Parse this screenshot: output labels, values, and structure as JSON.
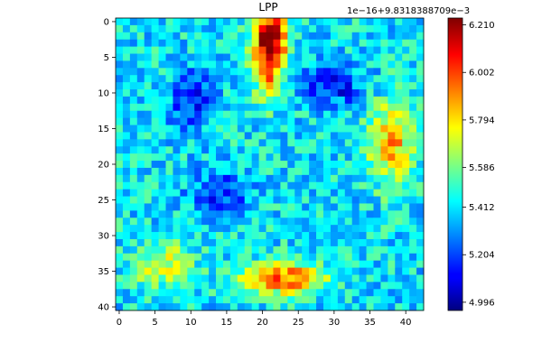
{
  "chart_data": {
    "type": "heatmap",
    "title": "LPP",
    "xlabel": "",
    "ylabel": "",
    "rows": 41,
    "cols": 43,
    "x_ticks": [
      "0",
      "5",
      "10",
      "15",
      "20",
      "25",
      "30",
      "35",
      "40"
    ],
    "y_ticks": [
      "0",
      "5",
      "10",
      "15",
      "20",
      "25",
      "30",
      "35",
      "40"
    ],
    "colormap": "jet",
    "colorbar": {
      "offset_label": "1e−16+9.8318388709e−3",
      "ticks": [
        "4.996",
        "5.204",
        "5.412",
        "5.586",
        "5.794",
        "6.002",
        "6.210"
      ],
      "vmin": 4.96,
      "vmax": 6.24
    },
    "regions": [
      {
        "desc": "top-center hot spot",
        "row": 2,
        "col": 21,
        "value": 6.22
      },
      {
        "desc": "upper hot tail",
        "row": 7,
        "col": 21,
        "value": 5.95
      },
      {
        "desc": "bottom-center hot spot",
        "row": 36,
        "col": 23,
        "value": 6.0
      },
      {
        "desc": "right-middle warm region",
        "row": 18,
        "col": 38,
        "value": 5.85
      },
      {
        "desc": "bottom-left warm region",
        "row": 34,
        "col": 6,
        "value": 5.75
      },
      {
        "desc": "cold region upper left",
        "row": 11,
        "col": 10,
        "value": 5.1
      },
      {
        "desc": "cold region upper right",
        "row": 9,
        "col": 30,
        "value": 5.1
      }
    ]
  }
}
